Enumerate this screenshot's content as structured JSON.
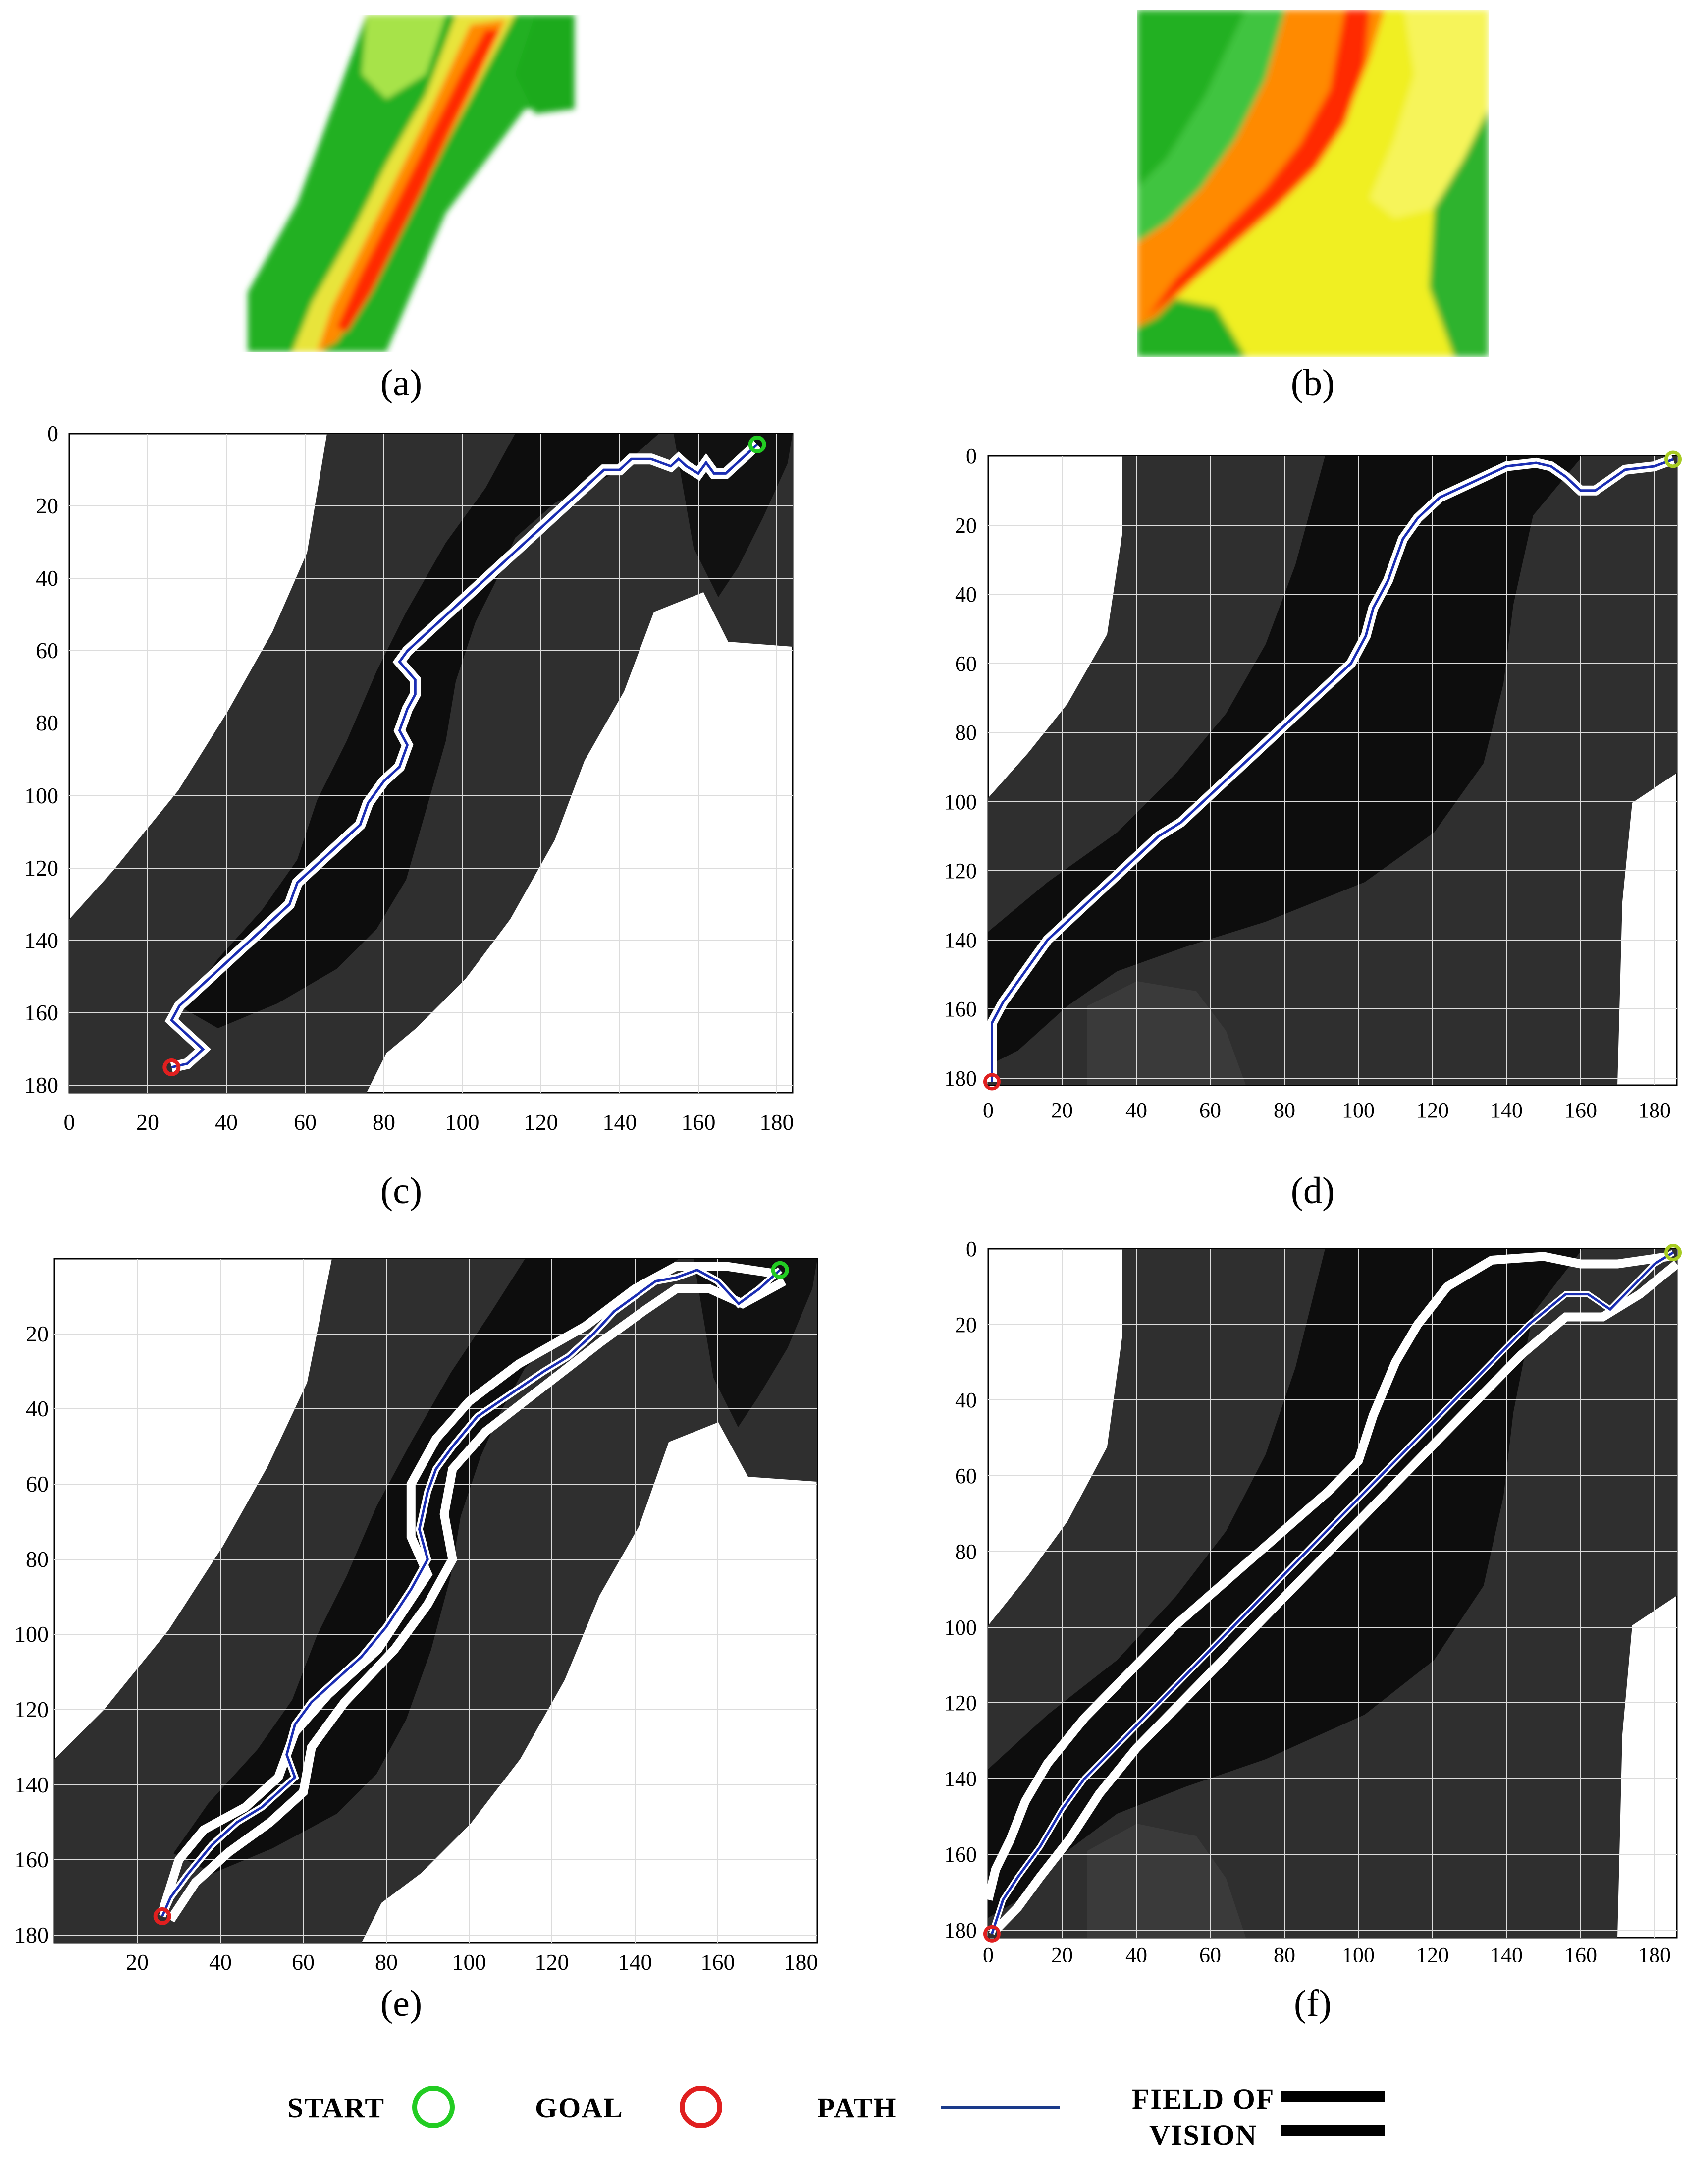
{
  "figure": {
    "panel_labels": {
      "a": "(a)",
      "b": "(b)",
      "c": "(c)",
      "d": "(d)",
      "e": "(e)",
      "f": "(f)"
    }
  },
  "colors": {
    "start": "#22cc22",
    "goal": "#e01f1f",
    "path": "#1a2db3",
    "map_dark": "#0d0d0d",
    "map_mid": "#2f2f2f",
    "field_of_vision": "#ffffff",
    "heat_green": "#22b022",
    "heat_yellow": "#f5f000",
    "heat_orange": "#ff8a00",
    "heat_red": "#ff1a00"
  },
  "legend": {
    "start": "START",
    "goal": "GOAL",
    "path": "PATH",
    "fov_line1": "FIELD OF",
    "fov_line2": "VISION"
  },
  "axes": {
    "c": {
      "x_ticks": [
        "0",
        "20",
        "40",
        "60",
        "80",
        "100",
        "120",
        "140",
        "160",
        "180"
      ],
      "y_ticks": [
        "0",
        "20",
        "40",
        "60",
        "80",
        "100",
        "120",
        "140",
        "160",
        "180"
      ],
      "xlim": [
        0,
        184
      ],
      "ylim": [
        0,
        182
      ]
    },
    "d": {
      "x_ticks": [
        "0",
        "20",
        "40",
        "60",
        "80",
        "100",
        "120",
        "140",
        "160",
        "180"
      ],
      "y_ticks": [
        "0",
        "20",
        "40",
        "60",
        "80",
        "100",
        "120",
        "140",
        "160",
        "180"
      ],
      "xlim": [
        0,
        186
      ],
      "ylim": [
        0,
        182
      ]
    },
    "e": {
      "x_ticks": [
        "20",
        "40",
        "60",
        "80",
        "100",
        "120",
        "140",
        "160",
        "180"
      ],
      "y_ticks": [
        "20",
        "40",
        "60",
        "80",
        "100",
        "120",
        "140",
        "160",
        "180"
      ],
      "xlim": [
        0,
        184
      ],
      "ylim": [
        0,
        182
      ]
    },
    "f": {
      "x_ticks": [
        "0",
        "20",
        "40",
        "60",
        "80",
        "100",
        "120",
        "140",
        "160",
        "180"
      ],
      "y_ticks": [
        "0",
        "20",
        "40",
        "60",
        "80",
        "100",
        "120",
        "140",
        "160",
        "180"
      ],
      "xlim": [
        0,
        186
      ],
      "ylim": [
        0,
        182
      ]
    }
  },
  "paths": {
    "c": [
      [
        175,
        3
      ],
      [
        170,
        8
      ],
      [
        167,
        11
      ],
      [
        164,
        11
      ],
      [
        162,
        8
      ],
      [
        160,
        11
      ],
      [
        157,
        9
      ],
      [
        155,
        7
      ],
      [
        153,
        9
      ],
      [
        148,
        7
      ],
      [
        143,
        7
      ],
      [
        140,
        10
      ],
      [
        136,
        10
      ],
      [
        130,
        16
      ],
      [
        126,
        20
      ],
      [
        122,
        24
      ],
      [
        118,
        28
      ],
      [
        110,
        36
      ],
      [
        102,
        44
      ],
      [
        96,
        50
      ],
      [
        90,
        56
      ],
      [
        86,
        60
      ],
      [
        84,
        63
      ],
      [
        88,
        68
      ],
      [
        88,
        72
      ],
      [
        86,
        76
      ],
      [
        84,
        82
      ],
      [
        86,
        86
      ],
      [
        84,
        92
      ],
      [
        80,
        96
      ],
      [
        76,
        102
      ],
      [
        74,
        108
      ],
      [
        70,
        112
      ],
      [
        66,
        116
      ],
      [
        62,
        120
      ],
      [
        58,
        124
      ],
      [
        56,
        130
      ],
      [
        52,
        134
      ],
      [
        48,
        138
      ],
      [
        44,
        142
      ],
      [
        40,
        146
      ],
      [
        36,
        150
      ],
      [
        32,
        154
      ],
      [
        28,
        158
      ],
      [
        26,
        162
      ],
      [
        30,
        166
      ],
      [
        34,
        170
      ],
      [
        30,
        174
      ],
      [
        26,
        175
      ]
    ],
    "d": [
      [
        185,
        1
      ],
      [
        180,
        3
      ],
      [
        172,
        4
      ],
      [
        168,
        7
      ],
      [
        164,
        10
      ],
      [
        160,
        10
      ],
      [
        156,
        6
      ],
      [
        152,
        3
      ],
      [
        148,
        2
      ],
      [
        140,
        3
      ],
      [
        134,
        6
      ],
      [
        128,
        9
      ],
      [
        122,
        12
      ],
      [
        116,
        18
      ],
      [
        112,
        24
      ],
      [
        108,
        36
      ],
      [
        104,
        44
      ],
      [
        102,
        52
      ],
      [
        98,
        60
      ],
      [
        94,
        64
      ],
      [
        88,
        70
      ],
      [
        80,
        78
      ],
      [
        70,
        88
      ],
      [
        60,
        98
      ],
      [
        52,
        106
      ],
      [
        46,
        110
      ],
      [
        40,
        116
      ],
      [
        34,
        122
      ],
      [
        28,
        128
      ],
      [
        22,
        134
      ],
      [
        16,
        140
      ],
      [
        12,
        146
      ],
      [
        8,
        152
      ],
      [
        4,
        158
      ],
      [
        1,
        164
      ],
      [
        1,
        172
      ],
      [
        1,
        181
      ]
    ],
    "e": [
      [
        175,
        3
      ],
      [
        170,
        8
      ],
      [
        165,
        12
      ],
      [
        160,
        6
      ],
      [
        155,
        3
      ],
      [
        150,
        5
      ],
      [
        145,
        6
      ],
      [
        140,
        10
      ],
      [
        135,
        14
      ],
      [
        130,
        20
      ],
      [
        124,
        26
      ],
      [
        118,
        30
      ],
      [
        110,
        36
      ],
      [
        102,
        42
      ],
      [
        96,
        50
      ],
      [
        92,
        56
      ],
      [
        90,
        62
      ],
      [
        88,
        72
      ],
      [
        90,
        80
      ],
      [
        86,
        88
      ],
      [
        80,
        98
      ],
      [
        74,
        106
      ],
      [
        68,
        112
      ],
      [
        62,
        118
      ],
      [
        58,
        124
      ],
      [
        56,
        132
      ],
      [
        58,
        138
      ],
      [
        54,
        142
      ],
      [
        50,
        146
      ],
      [
        44,
        150
      ],
      [
        38,
        156
      ],
      [
        32,
        164
      ],
      [
        28,
        170
      ],
      [
        26,
        175
      ]
    ],
    "f": [
      [
        185,
        1
      ],
      [
        180,
        4
      ],
      [
        174,
        10
      ],
      [
        168,
        16
      ],
      [
        162,
        12
      ],
      [
        156,
        12
      ],
      [
        146,
        20
      ],
      [
        136,
        30
      ],
      [
        120,
        46
      ],
      [
        104,
        62
      ],
      [
        88,
        78
      ],
      [
        72,
        94
      ],
      [
        56,
        110
      ],
      [
        44,
        122
      ],
      [
        34,
        132
      ],
      [
        26,
        140
      ],
      [
        20,
        148
      ],
      [
        14,
        158
      ],
      [
        8,
        166
      ],
      [
        4,
        172
      ],
      [
        1,
        181
      ]
    ]
  },
  "fov": {
    "e": [
      [
        [
          174,
          4
        ],
        [
          162,
          2
        ],
        [
          150,
          2
        ],
        [
          140,
          8
        ],
        [
          128,
          18
        ],
        [
          112,
          28
        ],
        [
          100,
          38
        ],
        [
          92,
          48
        ],
        [
          86,
          60
        ],
        [
          86,
          74
        ],
        [
          90,
          84
        ],
        [
          84,
          94
        ],
        [
          78,
          104
        ],
        [
          66,
          116
        ],
        [
          58,
          126
        ],
        [
          54,
          138
        ],
        [
          46,
          146
        ],
        [
          36,
          152
        ],
        [
          30,
          160
        ],
        [
          26,
          174
        ]
      ],
      [
        [
          176,
          6
        ],
        [
          166,
          12
        ],
        [
          158,
          8
        ],
        [
          150,
          8
        ],
        [
          142,
          14
        ],
        [
          132,
          22
        ],
        [
          118,
          34
        ],
        [
          104,
          46
        ],
        [
          96,
          56
        ],
        [
          94,
          68
        ],
        [
          96,
          80
        ],
        [
          90,
          92
        ],
        [
          82,
          104
        ],
        [
          70,
          118
        ],
        [
          62,
          130
        ],
        [
          60,
          142
        ],
        [
          52,
          150
        ],
        [
          42,
          158
        ],
        [
          34,
          166
        ],
        [
          28,
          176
        ]
      ]
    ],
    "f": [
      [
        [
          184,
          2
        ],
        [
          170,
          4
        ],
        [
          160,
          4
        ],
        [
          150,
          2
        ],
        [
          136,
          3
        ],
        [
          124,
          10
        ],
        [
          116,
          20
        ],
        [
          110,
          30
        ],
        [
          104,
          44
        ],
        [
          100,
          56
        ],
        [
          92,
          64
        ],
        [
          78,
          76
        ],
        [
          64,
          88
        ],
        [
          50,
          100
        ],
        [
          38,
          112
        ],
        [
          26,
          124
        ],
        [
          16,
          136
        ],
        [
          10,
          146
        ],
        [
          6,
          156
        ],
        [
          2,
          164
        ],
        [
          0,
          172
        ]
      ],
      [
        [
          186,
          4
        ],
        [
          176,
          12
        ],
        [
          166,
          18
        ],
        [
          156,
          18
        ],
        [
          144,
          28
        ],
        [
          130,
          42
        ],
        [
          114,
          58
        ],
        [
          96,
          76
        ],
        [
          80,
          92
        ],
        [
          64,
          108
        ],
        [
          50,
          122
        ],
        [
          40,
          132
        ],
        [
          30,
          144
        ],
        [
          22,
          156
        ],
        [
          14,
          166
        ],
        [
          8,
          174
        ],
        [
          2,
          180
        ]
      ]
    ]
  }
}
